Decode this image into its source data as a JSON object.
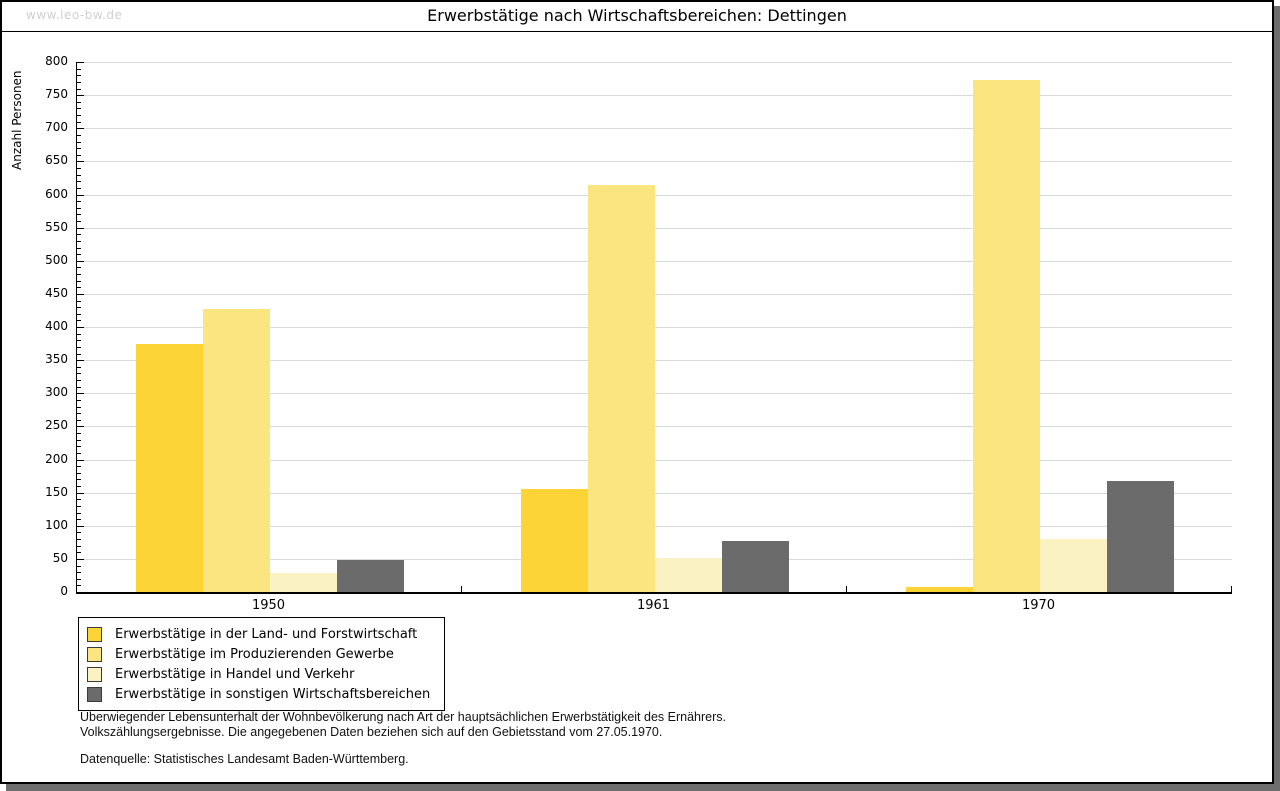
{
  "watermark": "www.leo-bw.de",
  "title": "Erwerbstätige nach Wirtschaftsbereichen: Dettingen",
  "chart_data": {
    "type": "bar",
    "title": "Erwerbstätige nach Wirtschaftsbereichen: Dettingen",
    "xlabel": "",
    "ylabel": "Anzahl Personen",
    "categories": [
      "1950",
      "1961",
      "1970"
    ],
    "series": [
      {
        "name": "Erwerbstätige in der Land- und Forstwirtschaft",
        "color": "#FCD435",
        "values": [
          375,
          155,
          8
        ]
      },
      {
        "name": "Erwerbstätige im Produzierenden Gewerbe",
        "color": "#FBE581",
        "values": [
          427,
          614,
          773
        ]
      },
      {
        "name": "Erwerbstätige in Handel und Verkehr",
        "color": "#FBF2C4",
        "values": [
          29,
          52,
          80
        ]
      },
      {
        "name": "Erwerbstätige in sonstigen Wirtschaftsbereichen",
        "color": "#6B6B6B",
        "values": [
          48,
          77,
          167
        ]
      }
    ],
    "ylim": [
      0,
      800
    ],
    "ytick_step": 50,
    "yminor_step": 10,
    "grid": "horizontal-major",
    "legend_position": "bottom-left"
  },
  "footer": {
    "line1": "Überwiegender Lebensunterhalt der Wohnbevölkerung nach Art der hauptsächlichen Erwerbstätigkeit des Ernährers.",
    "line2": "Volkszählungsergebnisse. Die angegebenen Daten beziehen sich auf den Gebietsstand vom 27.05.1970.",
    "line3": "Datenquelle: Statistisches Landesamt Baden-Württemberg."
  },
  "colors": {
    "grid": "#d9d9d9",
    "axis": "#000000",
    "frame_shadow": "#6e6e6e",
    "watermark": "#cfcfcf",
    "background": "#ffffff"
  }
}
